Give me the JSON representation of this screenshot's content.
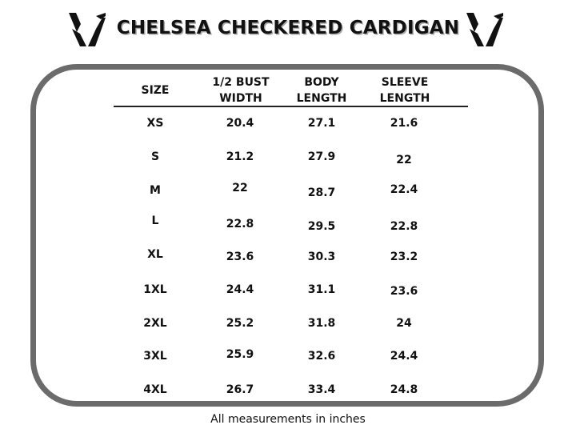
{
  "title": "CHELSEA CHECKERED CARDIGAN",
  "logo_icon": "v-monogram-logo-icon",
  "columns": {
    "size": "SIZE",
    "bust_line1": "1/2 BUST",
    "bust_line2": "WIDTH",
    "body_line1": "BODY",
    "body_line2": "LENGTH",
    "sleeve_line1": "SLEEVE",
    "sleeve_line2": "LENGTH"
  },
  "rows": [
    {
      "size": "XS",
      "bust": "20.4",
      "body": "27.1",
      "sleeve": "21.6"
    },
    {
      "size": "S",
      "bust": "21.2",
      "body": "27.9",
      "sleeve": "22"
    },
    {
      "size": "M",
      "bust": "22",
      "body": "28.7",
      "sleeve": "22.4"
    },
    {
      "size": "L",
      "bust": "22.8",
      "body": "29.5",
      "sleeve": "22.8"
    },
    {
      "size": "XL",
      "bust": "23.6",
      "body": "30.3",
      "sleeve": "23.2"
    },
    {
      "size": "1XL",
      "bust": "24.4",
      "body": "31.1",
      "sleeve": "23.6"
    },
    {
      "size": "2XL",
      "bust": "25.2",
      "body": "31.8",
      "sleeve": "24"
    },
    {
      "size": "3XL",
      "bust": "25.9",
      "body": "32.6",
      "sleeve": "24.4"
    },
    {
      "size": "4XL",
      "bust": "26.7",
      "body": "33.4",
      "sleeve": "24.8"
    }
  ],
  "footnote": "All measurements in inches",
  "colors": {
    "frame": "#6b6b6b",
    "text": "#111111",
    "title_shadow": "#a9a9a9"
  }
}
